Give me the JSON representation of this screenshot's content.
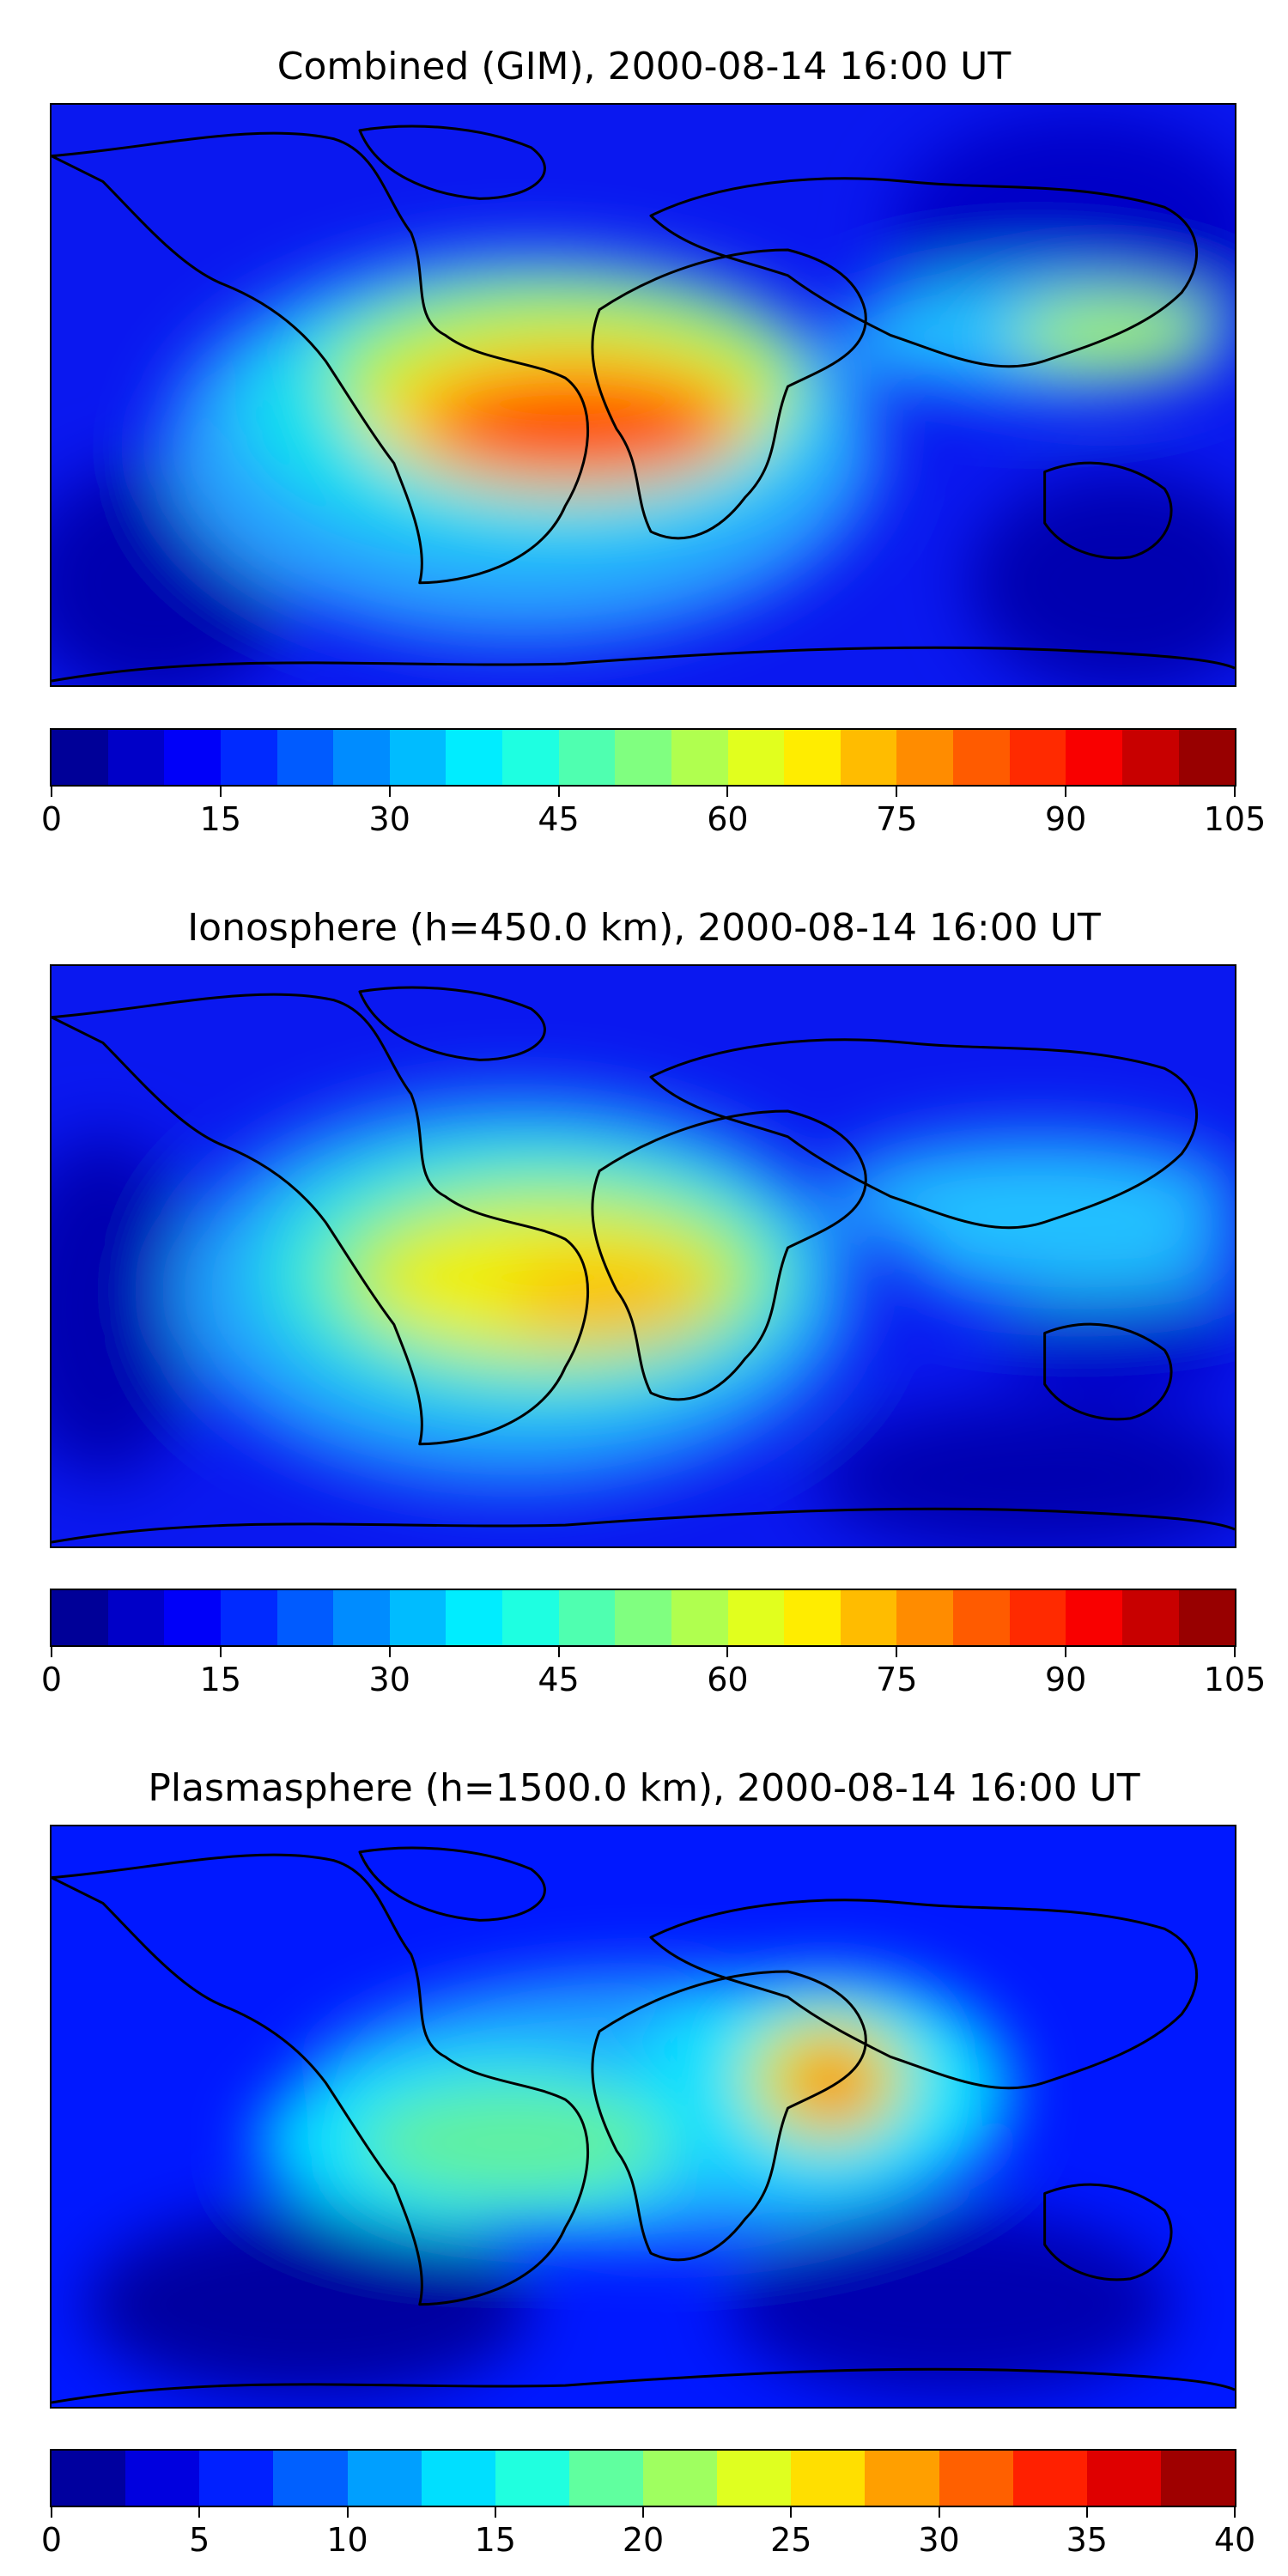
{
  "panels": [
    {
      "title": "Combined (GIM), 2000-08-14 16:00 UT",
      "colorbar": {
        "vmin": 0,
        "vmax": 105,
        "levels": 21,
        "ticks": [
          "0",
          "15",
          "30",
          "45",
          "60",
          "75",
          "90",
          "105"
        ]
      }
    },
    {
      "title": "Ionosphere  (h=450.0 km), 2000-08-14 16:00 UT",
      "colorbar": {
        "vmin": 0,
        "vmax": 105,
        "levels": 21,
        "ticks": [
          "0",
          "15",
          "30",
          "45",
          "60",
          "75",
          "90",
          "105"
        ]
      }
    },
    {
      "title": "Plasmasphere (h=1500.0 km), 2000-08-14 16:00 UT",
      "colorbar": {
        "vmin": 0,
        "vmax": 40,
        "levels": 16,
        "ticks": [
          "0",
          "5",
          "10",
          "15",
          "20",
          "25",
          "30",
          "35",
          "40"
        ]
      }
    }
  ],
  "colors": {
    "coastline": "#000000",
    "background_low": "#0000c8"
  }
}
